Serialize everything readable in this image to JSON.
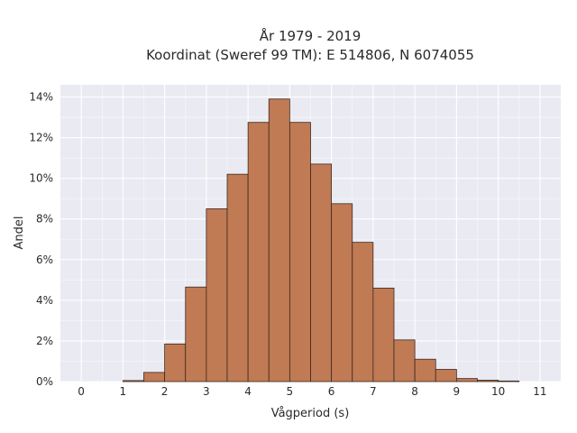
{
  "chart_data": {
    "type": "bar",
    "title": "År 1979 - 2019",
    "subtitle": "Koordinat (Sweref 99 TM): E 514806, N 6074055",
    "xlabel": "Vågperiod (s)",
    "ylabel": "Andel",
    "xlim": [
      -0.5,
      11.5
    ],
    "ylim": [
      0,
      14.6
    ],
    "x_ticks": [
      0,
      1,
      2,
      3,
      4,
      5,
      6,
      7,
      8,
      9,
      10,
      11
    ],
    "y_ticks": [
      0,
      2,
      4,
      6,
      8,
      10,
      12,
      14
    ],
    "y_tick_suffix": "%",
    "bin_width": 0.5,
    "bins": [
      {
        "x0": 1.0,
        "x1": 1.5,
        "value": 0.05
      },
      {
        "x0": 1.5,
        "x1": 2.0,
        "value": 0.45
      },
      {
        "x0": 2.0,
        "x1": 2.5,
        "value": 1.85
      },
      {
        "x0": 2.5,
        "x1": 3.0,
        "value": 4.65
      },
      {
        "x0": 3.0,
        "x1": 3.5,
        "value": 8.5
      },
      {
        "x0": 3.5,
        "x1": 4.0,
        "value": 10.2
      },
      {
        "x0": 4.0,
        "x1": 4.5,
        "value": 12.75
      },
      {
        "x0": 4.5,
        "x1": 5.0,
        "value": 13.9
      },
      {
        "x0": 5.0,
        "x1": 5.5,
        "value": 12.75
      },
      {
        "x0": 5.5,
        "x1": 6.0,
        "value": 10.7
      },
      {
        "x0": 6.0,
        "x1": 6.5,
        "value": 8.75
      },
      {
        "x0": 6.5,
        "x1": 7.0,
        "value": 6.85
      },
      {
        "x0": 7.0,
        "x1": 7.5,
        "value": 4.6
      },
      {
        "x0": 7.5,
        "x1": 8.0,
        "value": 2.05
      },
      {
        "x0": 8.0,
        "x1": 8.5,
        "value": 1.1
      },
      {
        "x0": 8.5,
        "x1": 9.0,
        "value": 0.6
      },
      {
        "x0": 9.0,
        "x1": 9.5,
        "value": 0.15
      },
      {
        "x0": 9.5,
        "x1": 10.0,
        "value": 0.07
      },
      {
        "x0": 10.0,
        "x1": 10.5,
        "value": 0.03
      }
    ],
    "bar_color": "#c07a54",
    "bar_edge_color": "#3a2a20",
    "plot_bg_color": "#eaeaf2",
    "grid_color": "#ffffff",
    "grid": true,
    "legend": false
  }
}
